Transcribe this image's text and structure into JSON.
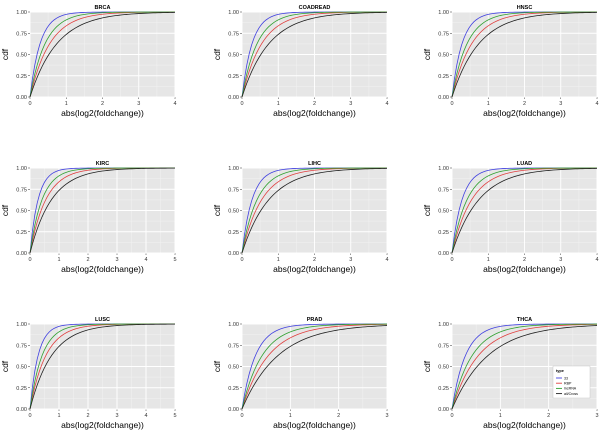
{
  "chart_data": {
    "type": "line",
    "xlabel": "abs(log2(foldchange))",
    "ylabel": "cdf",
    "ylim": [
      0,
      1
    ],
    "yticks": [
      "0.00",
      "0.25",
      "0.50",
      "0.75",
      "1.00"
    ],
    "legend": {
      "title": "type",
      "position": "inside-bottom-right of last panel",
      "entries": [
        "33",
        "RBP",
        "lncRNA",
        "all/Cross"
      ]
    },
    "series_colors": {
      "33": "#4040e0",
      "RBP": "#e04040",
      "lncRNA": "#30a030",
      "all/Cross": "#202020"
    },
    "series_scale": {
      "33": 0.28,
      "RBP": 0.55,
      "lncRNA": 0.42,
      "all/Cross": 0.75
    },
    "panels": [
      {
        "title": "BRCA",
        "xmax": 4,
        "xticks": [
          "0",
          "1",
          "2",
          "3",
          "4"
        ]
      },
      {
        "title": "COADREAD",
        "xmax": 4,
        "xticks": [
          "0",
          "1",
          "2",
          "3",
          "4"
        ]
      },
      {
        "title": "HNSC",
        "xmax": 4,
        "xticks": [
          "0",
          "1",
          "2",
          "3",
          "4"
        ]
      },
      {
        "title": "KIRC",
        "xmax": 5,
        "xticks": [
          "0",
          "1",
          "2",
          "3",
          "4",
          "5"
        ]
      },
      {
        "title": "LIHC",
        "xmax": 4,
        "xticks": [
          "0",
          "1",
          "2",
          "3",
          "4"
        ]
      },
      {
        "title": "LUAD",
        "xmax": 4,
        "xticks": [
          "0",
          "1",
          "2",
          "3",
          "4"
        ]
      },
      {
        "title": "LUSC",
        "xmax": 5,
        "xticks": [
          "0",
          "1",
          "2",
          "3",
          "4",
          "5"
        ]
      },
      {
        "title": "PRAD",
        "xmax": 3,
        "xticks": [
          "0",
          "1",
          "2",
          "3"
        ]
      },
      {
        "title": "THCA",
        "xmax": 3,
        "xticks": [
          "0",
          "1",
          "2",
          "3"
        ]
      }
    ]
  }
}
